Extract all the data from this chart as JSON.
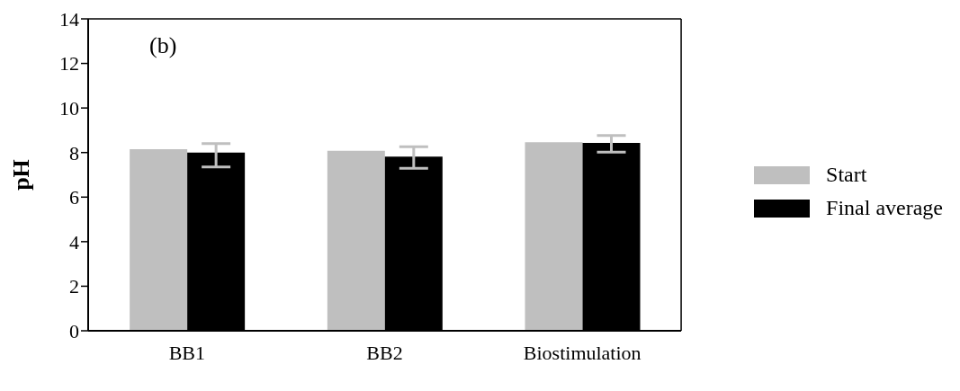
{
  "chart_data": {
    "type": "bar",
    "categories": [
      "BB1",
      "BB2",
      "Biostimulation"
    ],
    "series": [
      {
        "name": "Start",
        "color": "#bfbfbf",
        "values": [
          8.15,
          8.08,
          8.46
        ]
      },
      {
        "name": "Final average",
        "color": "#000000",
        "values": [
          8.0,
          7.82,
          8.43
        ],
        "errors": [
          [
            7.35,
            8.4
          ],
          [
            7.29,
            8.26
          ],
          [
            8.02,
            8.77
          ]
        ]
      }
    ],
    "ylabel": "pH",
    "ylim": [
      0,
      14
    ],
    "yticks": [
      0,
      2,
      4,
      6,
      8,
      10,
      12,
      14
    ],
    "annotations": [
      "(b)"
    ],
    "legend": "right",
    "grid": false
  }
}
